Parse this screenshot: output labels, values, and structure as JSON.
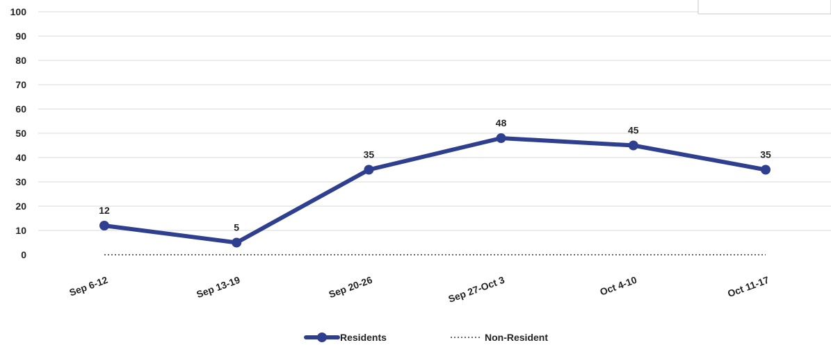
{
  "chart_data": {
    "type": "line",
    "categories": [
      "Sep 6-12",
      "Sep 13-19",
      "Sep 20-26",
      "Sep 27-Oct 3",
      "Oct 4-10",
      "Oct 11-17"
    ],
    "series": [
      {
        "name": "Residents",
        "values": [
          12,
          5,
          35,
          48,
          45,
          35
        ],
        "color": "#2e3f8f",
        "line_style": "solid",
        "markers": true,
        "data_labels": [
          "12",
          "5",
          "35",
          "48",
          "45",
          "35"
        ]
      },
      {
        "name": "Non-Resident",
        "values": [
          0,
          0,
          0,
          0,
          0,
          0
        ],
        "color": "#666666",
        "line_style": "dotted",
        "markers": false
      }
    ],
    "ylim": [
      0,
      100
    ],
    "yticks": [
      "0",
      "10",
      "20",
      "30",
      "40",
      "50",
      "60",
      "70",
      "80",
      "90",
      "100"
    ],
    "grid": true,
    "legend_position": "bottom",
    "x_tick_rotation": "angled"
  }
}
